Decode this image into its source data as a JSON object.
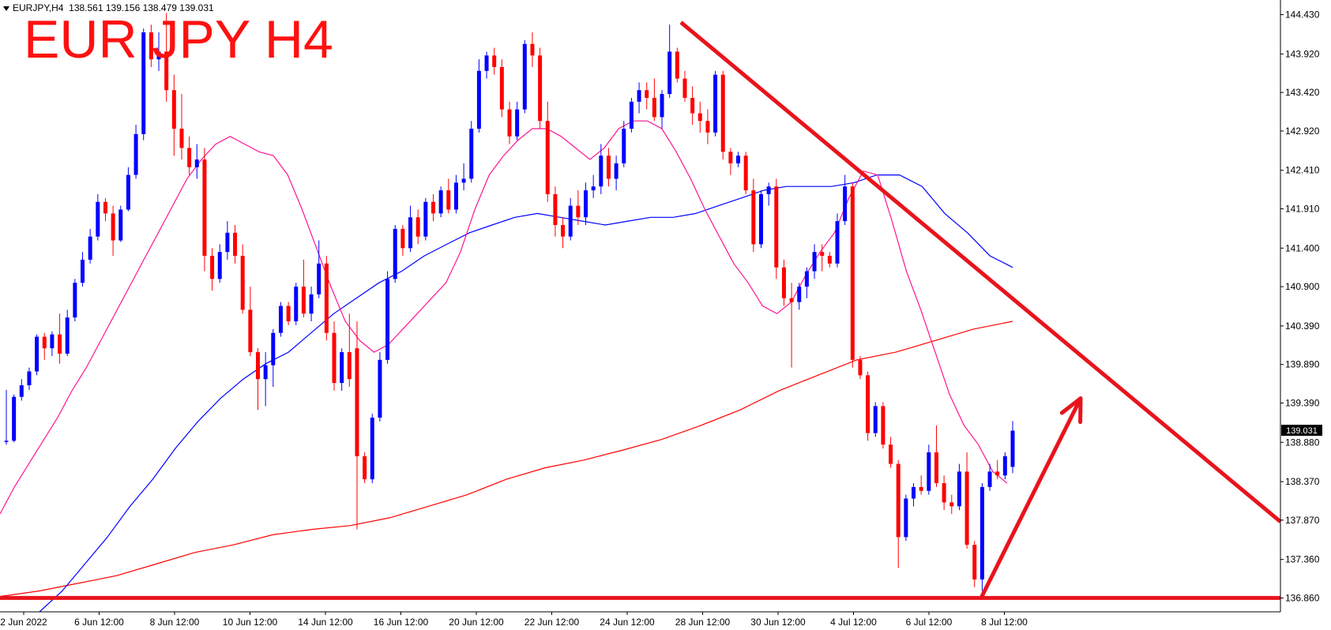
{
  "header": {
    "symbol": "EURJPY,H4",
    "ohlc": "138.561 139.156 138.479 139.031"
  },
  "overlay_title": "EUR JPY H4",
  "current_price_label": "139.031",
  "chart_data": {
    "type": "candlestick",
    "symbol": "EURJPY",
    "timeframe": "H4",
    "ylim": [
      136.68,
      144.62
    ],
    "y_ticks": [
      "144.430",
      "143.920",
      "143.420",
      "142.920",
      "142.410",
      "141.910",
      "141.400",
      "140.900",
      "140.390",
      "139.890",
      "139.390",
      "138.880",
      "138.370",
      "137.870",
      "137.360",
      "136.860"
    ],
    "x_ticks": [
      "2 Jun 2022",
      "6 Jun 12:00",
      "8 Jun 12:00",
      "10 Jun 12:00",
      "14 Jun 12:00",
      "16 Jun 12:00",
      "20 Jun 12:00",
      "22 Jun 12:00",
      "24 Jun 12:00",
      "28 Jun 12:00",
      "30 Jun 12:00",
      "4 Jul 12:00",
      "6 Jul 12:00",
      "8 Jul 12:00"
    ],
    "colors": {
      "bull": "#0000ff",
      "bear": "#ff0000",
      "ma_fast": "#ff1493",
      "ma_mid": "#0000ff",
      "ma_slow": "#ff0000",
      "annotation": "#e8141c"
    },
    "candles": [
      [
        138.9,
        139.56,
        138.85,
        138.9
      ],
      [
        138.9,
        139.5,
        138.88,
        139.47
      ],
      [
        139.47,
        139.7,
        139.42,
        139.62
      ],
      [
        139.62,
        139.85,
        139.56,
        139.8
      ],
      [
        139.8,
        140.28,
        139.75,
        140.25
      ],
      [
        140.25,
        140.3,
        139.95,
        140.1
      ],
      [
        140.1,
        140.32,
        140.0,
        140.28
      ],
      [
        140.28,
        140.55,
        139.9,
        140.03
      ],
      [
        140.03,
        140.6,
        140.0,
        140.5
      ],
      [
        140.5,
        141.0,
        140.45,
        140.95
      ],
      [
        140.95,
        141.35,
        140.9,
        141.25
      ],
      [
        141.25,
        141.65,
        141.2,
        141.55
      ],
      [
        141.55,
        142.1,
        141.5,
        142.0
      ],
      [
        142.0,
        142.05,
        141.75,
        141.85
      ],
      [
        141.85,
        141.95,
        141.3,
        141.5
      ],
      [
        141.5,
        141.95,
        141.48,
        141.9
      ],
      [
        141.9,
        142.45,
        141.88,
        142.35
      ],
      [
        142.35,
        143.0,
        142.3,
        142.88
      ],
      [
        142.88,
        144.25,
        142.8,
        144.2
      ],
      [
        144.2,
        144.3,
        143.75,
        143.85
      ],
      [
        143.85,
        144.2,
        143.7,
        143.95
      ],
      [
        143.95,
        144.45,
        143.3,
        143.45
      ],
      [
        143.45,
        143.65,
        142.6,
        142.95
      ],
      [
        142.95,
        143.4,
        142.55,
        142.7
      ],
      [
        142.7,
        142.85,
        142.35,
        142.45
      ],
      [
        142.45,
        142.75,
        142.3,
        142.55
      ],
      [
        142.55,
        142.7,
        141.1,
        141.3
      ],
      [
        141.3,
        141.4,
        140.85,
        141.0
      ],
      [
        141.0,
        141.45,
        140.95,
        141.35
      ],
      [
        141.35,
        141.75,
        141.25,
        141.6
      ],
      [
        141.6,
        141.7,
        141.2,
        141.3
      ],
      [
        141.3,
        141.45,
        140.55,
        140.6
      ],
      [
        140.6,
        140.9,
        140.0,
        140.05
      ],
      [
        140.05,
        140.1,
        139.3,
        139.7
      ],
      [
        139.7,
        140.05,
        139.35,
        139.88
      ],
      [
        139.88,
        140.35,
        139.6,
        140.3
      ],
      [
        140.3,
        140.7,
        140.25,
        140.65
      ],
      [
        140.65,
        140.7,
        140.4,
        140.45
      ],
      [
        140.45,
        140.95,
        140.4,
        140.9
      ],
      [
        140.9,
        141.25,
        140.5,
        140.55
      ],
      [
        140.55,
        140.9,
        140.45,
        140.8
      ],
      [
        140.8,
        141.5,
        140.75,
        141.2
      ],
      [
        141.2,
        141.3,
        140.2,
        140.3
      ],
      [
        140.3,
        140.45,
        139.55,
        139.65
      ],
      [
        139.65,
        140.1,
        139.55,
        140.05
      ],
      [
        140.05,
        140.55,
        139.6,
        139.7
      ],
      [
        140.1,
        140.45,
        137.75,
        138.7
      ],
      [
        138.7,
        138.75,
        138.35,
        138.4
      ],
      [
        138.4,
        139.25,
        138.35,
        139.2
      ],
      [
        139.2,
        140.05,
        139.15,
        139.95
      ],
      [
        139.95,
        141.1,
        139.9,
        141.0
      ],
      [
        141.0,
        141.7,
        140.95,
        141.65
      ],
      [
        141.65,
        141.7,
        141.3,
        141.4
      ],
      [
        141.4,
        141.95,
        141.35,
        141.8
      ],
      [
        141.8,
        141.9,
        141.45,
        141.55
      ],
      [
        141.55,
        142.05,
        141.5,
        142.0
      ],
      [
        142.0,
        142.1,
        141.75,
        141.85
      ],
      [
        141.85,
        142.2,
        141.8,
        142.15
      ],
      [
        142.15,
        142.3,
        141.85,
        141.9
      ],
      [
        141.9,
        142.35,
        141.85,
        142.25
      ],
      [
        142.25,
        142.5,
        142.15,
        142.3
      ],
      [
        142.3,
        143.05,
        142.25,
        142.95
      ],
      [
        142.95,
        143.85,
        142.9,
        143.7
      ],
      [
        143.7,
        143.95,
        143.6,
        143.9
      ],
      [
        143.9,
        144.0,
        143.65,
        143.75
      ],
      [
        143.75,
        143.85,
        143.1,
        143.2
      ],
      [
        143.2,
        143.3,
        142.75,
        142.85
      ],
      [
        142.85,
        143.3,
        142.8,
        143.2
      ],
      [
        143.2,
        144.1,
        143.15,
        144.05
      ],
      [
        144.05,
        144.2,
        143.75,
        143.9
      ],
      [
        143.9,
        144.0,
        142.95,
        143.05
      ],
      [
        143.05,
        143.3,
        142.0,
        142.1
      ],
      [
        142.1,
        142.2,
        141.55,
        141.7
      ],
      [
        141.7,
        141.8,
        141.4,
        141.55
      ],
      [
        141.55,
        142.05,
        141.5,
        141.95
      ],
      [
        141.95,
        142.15,
        141.7,
        141.8
      ],
      [
        141.8,
        142.25,
        141.7,
        142.15
      ],
      [
        142.15,
        142.35,
        142.05,
        142.2
      ],
      [
        142.2,
        142.75,
        142.1,
        142.6
      ],
      [
        142.6,
        142.7,
        142.2,
        142.3
      ],
      [
        142.3,
        142.6,
        142.15,
        142.5
      ],
      [
        142.5,
        143.05,
        142.45,
        142.95
      ],
      [
        142.95,
        143.35,
        142.9,
        143.3
      ],
      [
        143.3,
        143.55,
        143.15,
        143.45
      ],
      [
        143.45,
        143.55,
        143.2,
        143.35
      ],
      [
        143.35,
        143.6,
        143.05,
        143.1
      ],
      [
        143.1,
        143.45,
        142.95,
        143.4
      ],
      [
        143.4,
        144.3,
        143.35,
        143.95
      ],
      [
        143.95,
        144.0,
        143.55,
        143.6
      ],
      [
        143.6,
        143.7,
        143.3,
        143.35
      ],
      [
        143.35,
        143.5,
        143.0,
        143.15
      ],
      [
        143.15,
        143.3,
        142.9,
        143.05
      ],
      [
        143.05,
        143.2,
        142.75,
        142.9
      ],
      [
        142.9,
        143.7,
        142.85,
        143.65
      ],
      [
        143.65,
        143.7,
        142.55,
        142.65
      ],
      [
        142.65,
        142.7,
        142.35,
        142.5
      ],
      [
        142.5,
        142.65,
        142.45,
        142.6
      ],
      [
        142.6,
        142.65,
        142.1,
        142.15
      ],
      [
        142.15,
        142.3,
        141.35,
        141.45
      ],
      [
        141.45,
        142.15,
        141.4,
        142.1
      ],
      [
        142.1,
        142.25,
        141.95,
        142.2
      ],
      [
        142.2,
        142.3,
        141.0,
        141.15
      ],
      [
        141.15,
        141.25,
        140.65,
        140.75
      ],
      [
        140.75,
        140.95,
        139.85,
        140.7
      ],
      [
        140.7,
        140.95,
        140.6,
        140.9
      ],
      [
        140.9,
        141.15,
        140.75,
        141.1
      ],
      [
        141.1,
        141.45,
        141.0,
        141.35
      ],
      [
        141.35,
        141.45,
        141.1,
        141.3
      ],
      [
        141.3,
        141.35,
        141.15,
        141.2
      ],
      [
        141.2,
        141.85,
        141.15,
        141.75
      ],
      [
        141.75,
        142.35,
        141.7,
        142.2
      ],
      [
        142.2,
        142.25,
        139.85,
        139.95
      ],
      [
        139.95,
        140.0,
        139.7,
        139.75
      ],
      [
        139.75,
        139.8,
        138.9,
        139.0
      ],
      [
        139.0,
        139.4,
        138.95,
        139.35
      ],
      [
        139.35,
        139.4,
        138.8,
        138.85
      ],
      [
        138.85,
        138.95,
        138.55,
        138.6
      ],
      [
        138.6,
        138.65,
        137.25,
        137.65
      ],
      [
        137.65,
        138.2,
        137.6,
        138.15
      ],
      [
        138.15,
        138.35,
        138.05,
        138.3
      ],
      [
        138.3,
        138.45,
        138.2,
        138.25
      ],
      [
        138.25,
        138.85,
        138.2,
        138.75
      ],
      [
        138.75,
        139.1,
        138.3,
        138.35
      ],
      [
        138.35,
        138.45,
        138.0,
        138.1
      ],
      [
        138.1,
        138.2,
        137.95,
        138.05
      ],
      [
        138.05,
        138.6,
        138.0,
        138.5
      ],
      [
        138.5,
        138.75,
        137.5,
        137.55
      ],
      [
        137.55,
        137.6,
        137.0,
        137.1
      ],
      [
        137.1,
        138.35,
        136.95,
        138.3
      ],
      [
        138.3,
        138.6,
        138.25,
        138.5
      ],
      [
        138.5,
        138.65,
        138.4,
        138.45
      ],
      [
        138.45,
        138.75,
        138.4,
        138.7
      ],
      [
        138.561,
        139.156,
        138.479,
        139.031
      ]
    ],
    "ma_fast_values": [
      137.95,
      138.3,
      138.6,
      138.9,
      139.2,
      139.55,
      139.85,
      140.2,
      140.55,
      140.9,
      141.25,
      141.6,
      141.95,
      142.3,
      142.55,
      142.75,
      142.85,
      142.75,
      142.65,
      142.6,
      142.35,
      141.9,
      141.4,
      140.9,
      140.45,
      140.2,
      140.05,
      140.15,
      140.35,
      140.55,
      140.75,
      140.95,
      141.35,
      141.9,
      142.35,
      142.6,
      142.8,
      142.95,
      142.95,
      142.85,
      142.7,
      142.55,
      142.7,
      142.95,
      143.05,
      143.05,
      142.95,
      142.65,
      142.3,
      141.9,
      141.55,
      141.2,
      140.95,
      140.65,
      140.55,
      140.7,
      141.05,
      141.35,
      141.6,
      142.05,
      142.4,
      142.35,
      141.75,
      141.1,
      140.6,
      140.05,
      139.5,
      139.1,
      138.85,
      138.5,
      138.35
    ],
    "ma_mid_values": [
      136.68,
      136.95,
      137.3,
      137.65,
      138.05,
      138.4,
      138.8,
      139.15,
      139.45,
      139.7,
      139.9,
      140.05,
      140.3,
      140.55,
      140.75,
      140.95,
      141.1,
      141.3,
      141.45,
      141.6,
      141.7,
      141.8,
      141.85,
      141.8,
      141.75,
      141.7,
      141.75,
      141.8,
      141.8,
      141.85,
      141.95,
      142.05,
      142.15,
      142.2,
      142.2,
      142.2,
      142.25,
      142.35,
      142.35,
      142.2,
      141.85,
      141.6,
      141.3,
      141.15
    ],
    "ma_slow_values": [
      136.88,
      136.95,
      137.05,
      137.15,
      137.3,
      137.45,
      137.55,
      137.68,
      137.75,
      137.8,
      137.9,
      138.05,
      138.2,
      138.4,
      138.55,
      138.65,
      138.78,
      138.92,
      139.1,
      139.3,
      139.55,
      139.75,
      139.95,
      140.05,
      140.2,
      140.35,
      140.45
    ],
    "trendline": {
      "from_price": 144.33,
      "to_price": 137.85
    },
    "support_level": 136.86,
    "arrow": {
      "from_price": 136.86,
      "to_price": 139.45
    }
  }
}
